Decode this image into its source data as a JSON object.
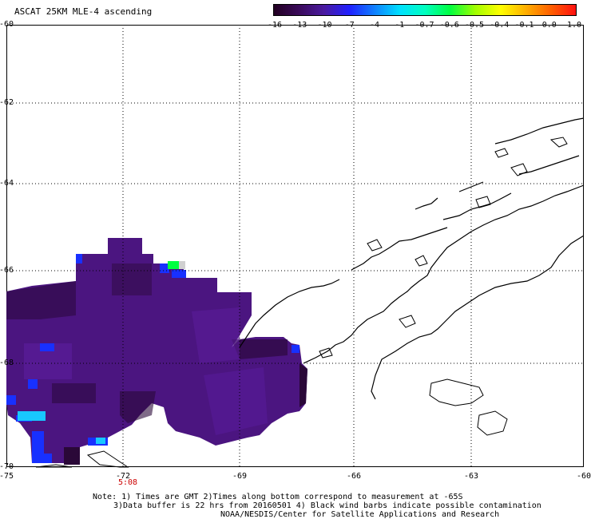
{
  "title": "ASCAT 25KM MLE-4 ascending",
  "colorbar": {
    "labels": [
      "-16",
      "-13",
      "-10",
      "-7",
      "-4",
      "-1",
      "-0.7",
      "-0.6",
      "-0.5",
      "-0.4",
      "-0.1",
      "0.0",
      "1.0"
    ],
    "colors": [
      "#220022",
      "#3a0a5a",
      "#4a1aa0",
      "#2020ff",
      "#1080ff",
      "#00e0ff",
      "#00ffc0",
      "#00ff40",
      "#a0ff00",
      "#ffff00",
      "#ffb000",
      "#ff6000",
      "#ff1010"
    ]
  },
  "lat_labels": [
    "-60",
    "-62",
    "-64",
    "-66",
    "-68",
    "-70"
  ],
  "lon_labels": [
    "-75",
    "-72",
    "-69",
    "-66",
    "-63",
    "-60"
  ],
  "time_label": "5:08",
  "notes": [
    "Note: 1) Times are GMT 2)Times along bottom correspond to measurement at -65S",
    "3)Data buffer is 22 hrs from 20160501 4) Black wind barbs indicate possible contamination",
    "NOAA/NESDIS/Center for Satellite Applications and Research"
  ],
  "palette": {
    "dark": "#2a0838",
    "mid": "#3e0c5c",
    "purple": "#4b1580",
    "violet": "#5a1c9a",
    "blue": "#1830ff",
    "cyan": "#18c8ff",
    "green": "#00ff40",
    "gray": "#d0d0d0"
  }
}
